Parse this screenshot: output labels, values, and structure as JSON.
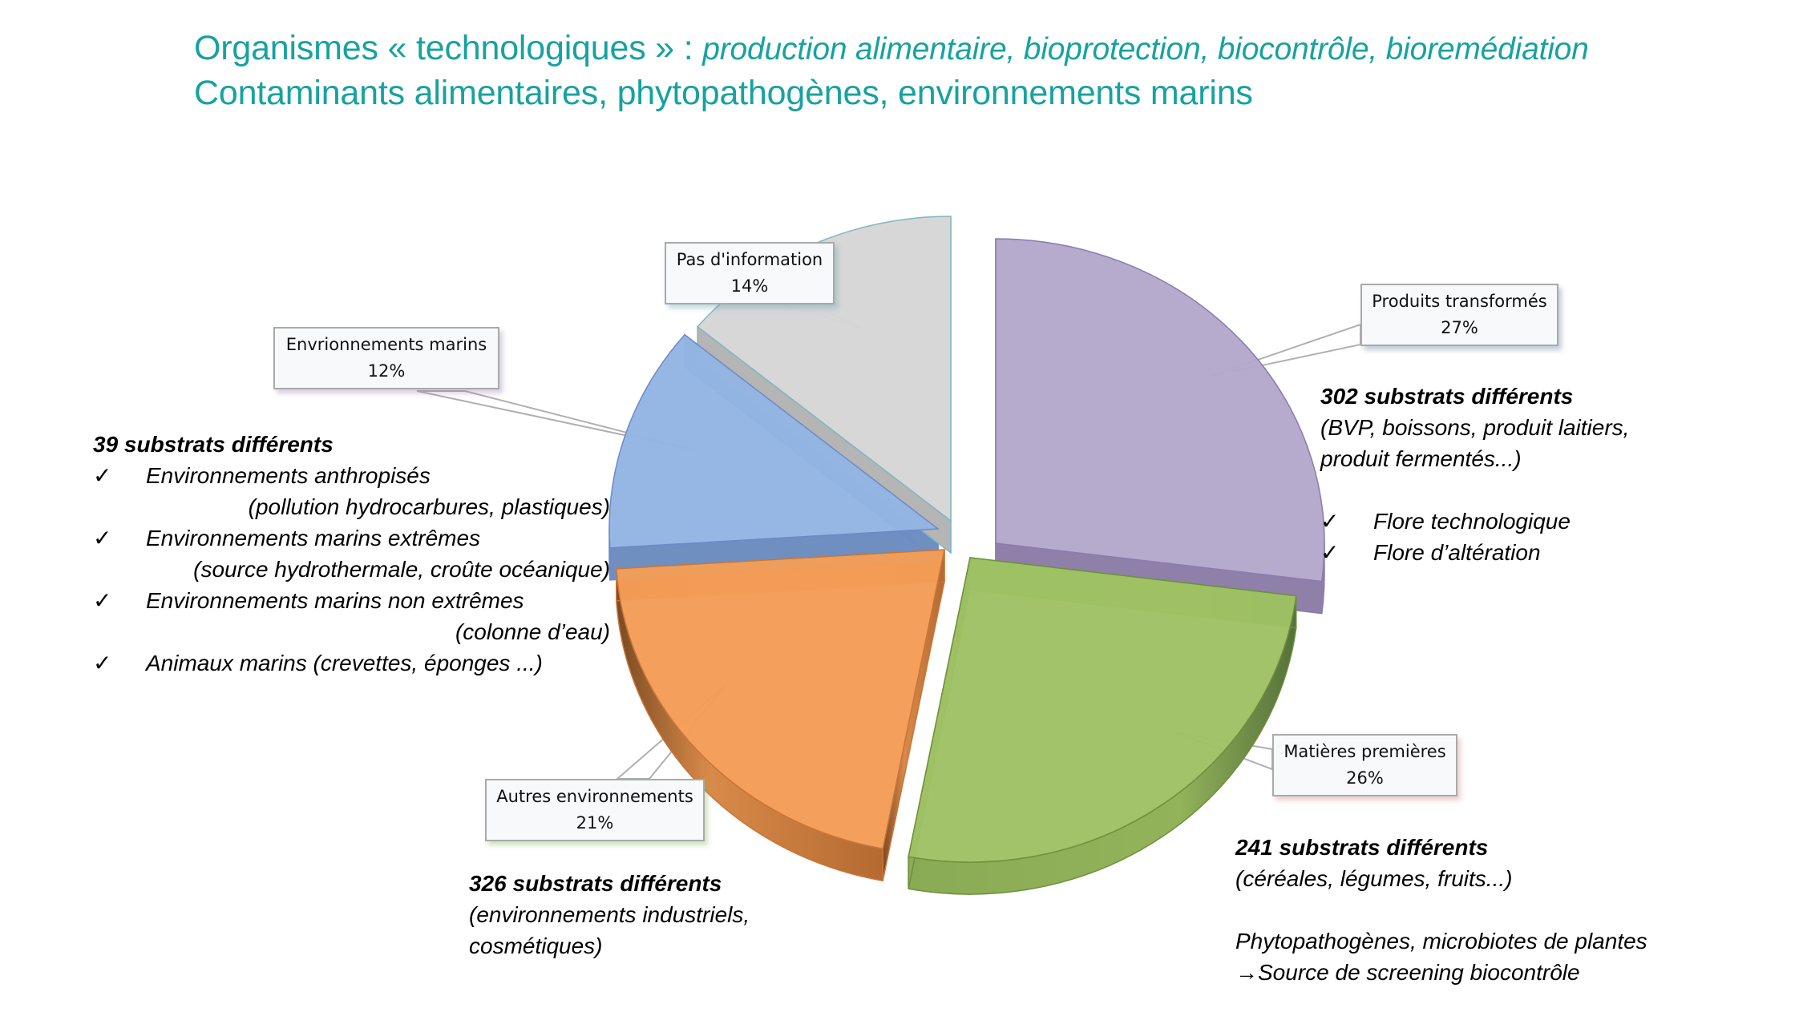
{
  "title": {
    "line1_main": "Organismes « technologiques »  : ",
    "line1_italic": "production alimentaire, bioprotection, biocontrôle, bioremédiation",
    "line2": "Contaminants alimentaires, phytopathogènes, environnements marins"
  },
  "chart_data": {
    "type": "pie",
    "style": "3d-exploded",
    "categories": [
      "Produits transformés",
      "Matières premières",
      "Autres environnements",
      "Envrionnements marins",
      "Pas d'information"
    ],
    "values": [
      27,
      26,
      21,
      12,
      14
    ],
    "unit": "%",
    "colors": [
      "#b4a7cb",
      "#9fc164",
      "#f49d57",
      "#93b5e3",
      "#d6d6d6"
    ],
    "start_angle": "12 o'clock, clockwise",
    "legend": "none (callout data labels)"
  },
  "callouts": [
    {
      "label": "Produits transformés",
      "value": "27%"
    },
    {
      "label": "Matières premières",
      "value": "26%"
    },
    {
      "label": "Autres environnements",
      "value": "21%"
    },
    {
      "label": "Envrionnements marins",
      "value": "12%"
    },
    {
      "label": "Pas d'information",
      "value": "14%"
    }
  ],
  "notes": {
    "marins": {
      "head": "39 substrats différents",
      "check": "✓",
      "items": [
        {
          "text": "Environnements anthropisés",
          "detail": "(pollution hydrocarbures, plastiques)"
        },
        {
          "text": "Environnements marins extrêmes",
          "detail": "(source hydrothermale, croûte océanique)"
        },
        {
          "text": "Environnements marins non extrêmes",
          "detail": "(colonne d’eau)"
        },
        {
          "text": "Animaux marins (crevettes, éponges ...)"
        }
      ]
    },
    "transformes": {
      "head": "302 substrats différents",
      "line1": "(BVP, boissons, produit laitiers,",
      "line2": "produit fermentés...)",
      "check": "✓",
      "items": [
        "Flore technologique",
        "Flore d’altération"
      ]
    },
    "autres": {
      "head": "326 substrats différents",
      "line1": "(environnements industriels,",
      "line2": "cosmétiques)"
    },
    "matieres": {
      "head": "241 substrats différents",
      "line1": "(céréales, légumes, fruits...)",
      "line2": "Phytopathogènes, microbiotes de plantes",
      "arrow": "→",
      "line3": "Source de screening biocontrôle"
    }
  }
}
